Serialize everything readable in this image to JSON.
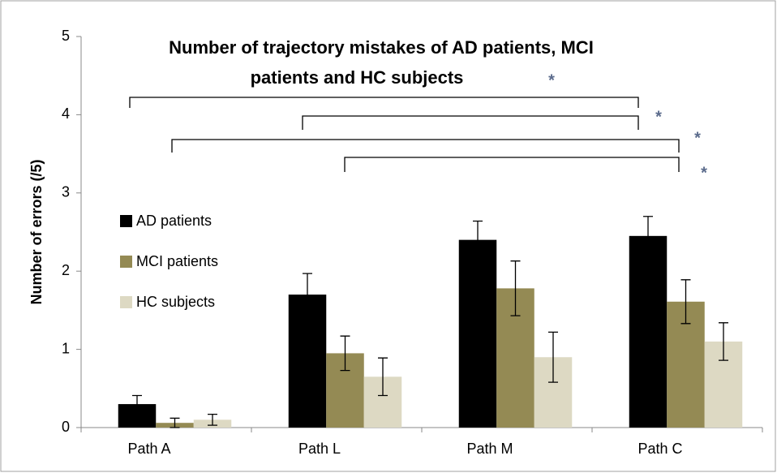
{
  "chart_data": {
    "type": "bar",
    "title": [
      "Number of trajectory mistakes of AD patients, MCI",
      "patients and HC subjects"
    ],
    "y_label": "Number of errors (/5)",
    "categories": [
      "Path A",
      "Path L",
      "Path M",
      "Path C"
    ],
    "series": [
      {
        "name": "AD patients",
        "color": "#000000",
        "values": [
          0.3,
          1.7,
          2.4,
          2.45
        ],
        "errors": [
          0.11,
          0.27,
          0.24,
          0.25
        ]
      },
      {
        "name": "MCI patients",
        "color": "#948a54",
        "values": [
          0.06,
          0.95,
          1.78,
          1.61
        ],
        "errors": [
          0.06,
          0.22,
          0.35,
          0.28
        ]
      },
      {
        "name": "HC subjects",
        "color": "#ddd9c3",
        "values": [
          0.1,
          0.65,
          0.9,
          1.1
        ],
        "errors": [
          0.07,
          0.24,
          0.32,
          0.24
        ]
      }
    ],
    "ylim": [
      0,
      5
    ],
    "yticks": [
      0,
      1,
      2,
      3,
      4,
      5
    ],
    "annotations": [
      "*",
      "*",
      "*",
      "*"
    ]
  }
}
